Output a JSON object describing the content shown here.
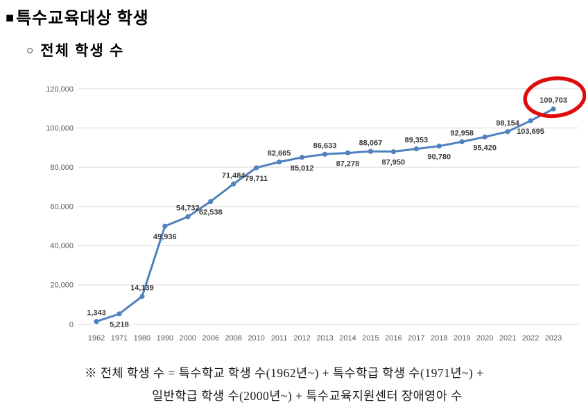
{
  "page": {
    "title_bullet": "■",
    "title": "특수교육대상 학생",
    "subtitle_bullet": "○",
    "subtitle": "전체 학생 수",
    "footnote_line1": "※ 전체 학생 수 = 특수학교 학생 수(1962년~) + 특수학급 학생 수(1971년~) +",
    "footnote_line2": "일반학급 학생 수(2000년~) + 특수교육지원센터 장애영아 수"
  },
  "chart_data": {
    "type": "line",
    "title": "",
    "xlabel": "",
    "ylabel": "",
    "categories": [
      "1962",
      "1971",
      "1980",
      "1990",
      "2000",
      "2006",
      "2008",
      "2010",
      "2011",
      "2012",
      "2013",
      "2014",
      "2015",
      "2016",
      "2017",
      "2018",
      "2019",
      "2020",
      "2021",
      "2022",
      "2023"
    ],
    "values": [
      1343,
      5218,
      14139,
      49936,
      54732,
      62538,
      71484,
      79711,
      82665,
      85012,
      86633,
      87278,
      88067,
      87950,
      89353,
      90780,
      92958,
      95420,
      98154,
      103695,
      109703
    ],
    "ylim": [
      0,
      120000
    ],
    "y_ticks": [
      0,
      20000,
      40000,
      60000,
      80000,
      100000,
      120000
    ],
    "grid": true,
    "legend": "none",
    "data_labels": true,
    "label_placement_alternates": "above-below starting above",
    "colors": {
      "line": "#4e81bd",
      "marker": "#4e81bd",
      "data_label": "#3b3b3b",
      "tick_label": "#595959",
      "gridline": "#d9d9d9",
      "highlight_circle": "#e00b0b"
    },
    "highlight": {
      "category": "2023",
      "value": 109703,
      "shape": "hand-drawn red ellipse around last point and its label"
    }
  }
}
